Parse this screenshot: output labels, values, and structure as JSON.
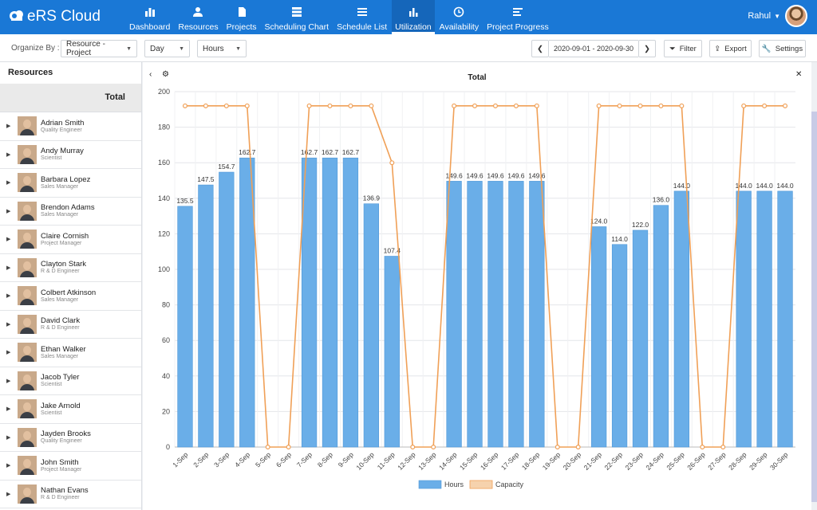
{
  "app": {
    "title": "eRS Cloud"
  },
  "nav": [
    {
      "label": "Dashboard",
      "icon": "dashboard-icon"
    },
    {
      "label": "Resources",
      "icon": "person-icon"
    },
    {
      "label": "Projects",
      "icon": "document-icon"
    },
    {
      "label": "Scheduling Chart",
      "icon": "server-icon"
    },
    {
      "label": "Schedule List",
      "icon": "list-icon"
    },
    {
      "label": "Utilization",
      "icon": "bar-chart-icon",
      "active": true
    },
    {
      "label": "Availability",
      "icon": "clock-icon"
    },
    {
      "label": "Project Progress",
      "icon": "progress-icon"
    }
  ],
  "user": {
    "name": "Rahul"
  },
  "toolbar": {
    "organize_label": "Organize By :",
    "organize_value": "Resource - Project",
    "period_value": "Day",
    "unit_value": "Hours",
    "date_range": "2020-09-01 - 2020-09-30",
    "filter_label": "Filter",
    "export_label": "Export",
    "settings_label": "Settings"
  },
  "left": {
    "heading": "Resources",
    "total_label": "Total",
    "resources": [
      {
        "name": "Adrian Smith",
        "role": "Quality Engineer"
      },
      {
        "name": "Andy Murray",
        "role": "Scientist"
      },
      {
        "name": "Barbara Lopez",
        "role": "Sales Manager"
      },
      {
        "name": "Brendon Adams",
        "role": "Sales Manager"
      },
      {
        "name": "Claire Cornish",
        "role": "Project Manager"
      },
      {
        "name": "Clayton Stark",
        "role": "R & D Engineer"
      },
      {
        "name": "Colbert Atkinson",
        "role": "Sales Manager"
      },
      {
        "name": "David Clark",
        "role": "R & D Engineer"
      },
      {
        "name": "Ethan Walker",
        "role": "Sales Manager"
      },
      {
        "name": "Jacob Tyler",
        "role": "Scientist"
      },
      {
        "name": "Jake Arnold",
        "role": "Scientist"
      },
      {
        "name": "Jayden Brooks",
        "role": "Quality Engineer"
      },
      {
        "name": "John Smith",
        "role": "Project Manager"
      },
      {
        "name": "Nathan Evans",
        "role": "R & D Engineer"
      }
    ]
  },
  "chart_data": {
    "type": "bar",
    "title": "Total",
    "categories": [
      "1-Sep",
      "2-Sep",
      "3-Sep",
      "4-Sep",
      "5-Sep",
      "6-Sep",
      "7-Sep",
      "8-Sep",
      "9-Sep",
      "10-Sep",
      "11-Sep",
      "12-Sep",
      "13-Sep",
      "14-Sep",
      "15-Sep",
      "16-Sep",
      "17-Sep",
      "18-Sep",
      "19-Sep",
      "20-Sep",
      "21-Sep",
      "22-Sep",
      "23-Sep",
      "24-Sep",
      "25-Sep",
      "26-Sep",
      "27-Sep",
      "28-Sep",
      "29-Sep",
      "30-Sep"
    ],
    "series": [
      {
        "name": "Hours",
        "kind": "bar",
        "color": "#6aaee8",
        "values": [
          135.5,
          147.5,
          154.7,
          162.7,
          0,
          0,
          162.7,
          162.7,
          162.7,
          136.9,
          107.4,
          0,
          0,
          149.6,
          149.6,
          149.6,
          149.6,
          149.6,
          0,
          0,
          124.0,
          114.0,
          122.0,
          136.0,
          144.0,
          0,
          0,
          144.0,
          144.0,
          144.0
        ],
        "labels": [
          "135.5",
          "147.5",
          "154.7",
          "162.7",
          "",
          "",
          "162.7",
          "162.7",
          "162.7",
          "136.9",
          "107.4",
          "",
          "",
          "149.6",
          "149.6",
          "149.6",
          "149.6",
          "149.6",
          "",
          "",
          "124.0",
          "114.0",
          "122.0",
          "136.0",
          "144.0",
          "",
          "",
          "144.0",
          "144.0",
          "144.0"
        ]
      },
      {
        "name": "Capacity",
        "kind": "line",
        "color": "#f0a057",
        "values": [
          192,
          192,
          192,
          192,
          0,
          0,
          192,
          192,
          192,
          192,
          160,
          0,
          0,
          192,
          192,
          192,
          192,
          192,
          0,
          0,
          192,
          192,
          192,
          192,
          192,
          0,
          0,
          192,
          192,
          192
        ]
      }
    ],
    "ylim": [
      0,
      200
    ],
    "yticks": [
      0,
      20,
      40,
      60,
      80,
      100,
      120,
      140,
      160,
      180,
      200
    ],
    "legend": "bottom",
    "grid": true
  }
}
